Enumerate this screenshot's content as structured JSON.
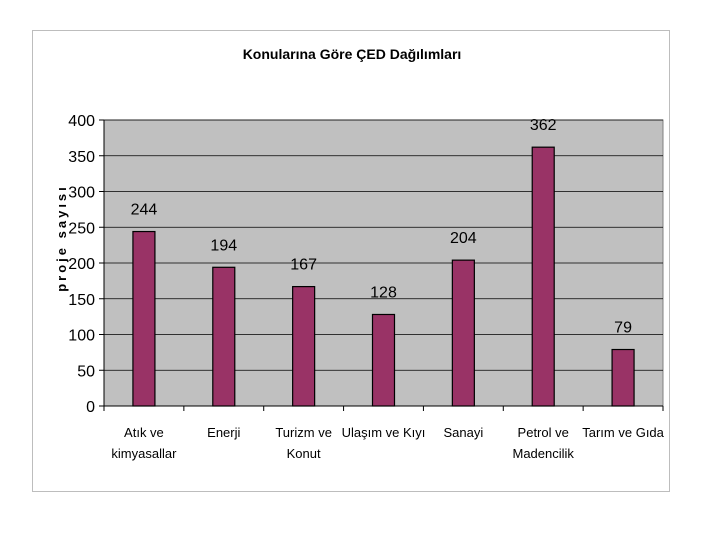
{
  "chart_data": {
    "type": "bar",
    "title": "Konularına Göre ÇED Dağılımları",
    "xlabel": "",
    "ylabel": "proje sayısı",
    "categories": [
      [
        "Atık ve",
        "kimyasallar"
      ],
      [
        "Enerji"
      ],
      [
        "Turizm ve",
        "Konut"
      ],
      [
        "Ulaşım ve Kıyı"
      ],
      [
        "Sanayi"
      ],
      [
        "Petrol ve",
        "Madencilik"
      ],
      [
        "Tarım ve Gıda"
      ]
    ],
    "values": [
      244,
      194,
      167,
      128,
      204,
      362,
      79
    ],
    "ylim": [
      0,
      400
    ],
    "yticks": [
      0,
      50,
      100,
      150,
      200,
      250,
      300,
      350,
      400
    ],
    "grid": true,
    "legend": "none",
    "colors": {
      "bar_fill": "#993366",
      "bar_stroke": "#000000",
      "plot_background": "#c0c0c0",
      "gridline": "#000000"
    }
  }
}
